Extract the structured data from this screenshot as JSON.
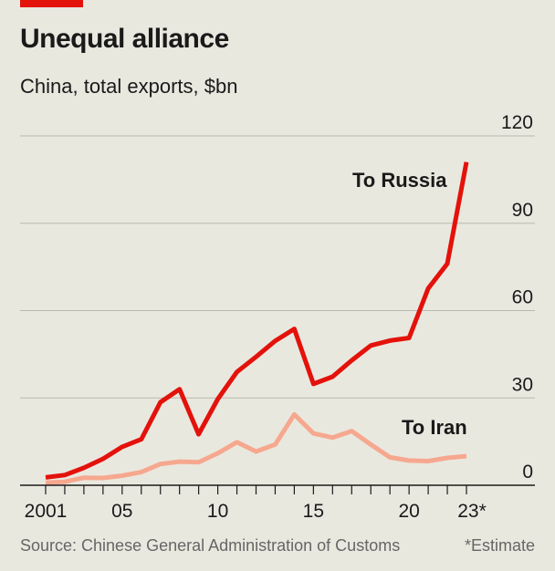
{
  "chart_data": {
    "type": "line",
    "title": "Unequal alliance",
    "subtitle": "China, total exports, $bn",
    "x": [
      2001,
      2002,
      2003,
      2004,
      2005,
      2006,
      2007,
      2008,
      2009,
      2010,
      2011,
      2012,
      2013,
      2014,
      2015,
      2016,
      2017,
      2018,
      2019,
      2020,
      2021,
      2022,
      2023
    ],
    "x_ticks": [
      {
        "value": 2001,
        "label": "2001"
      },
      {
        "value": 2005,
        "label": "05"
      },
      {
        "value": 2010,
        "label": "10"
      },
      {
        "value": 2015,
        "label": "15"
      },
      {
        "value": 2020,
        "label": "20"
      },
      {
        "value": 2023,
        "label": "23*"
      }
    ],
    "y_ticks": [
      0,
      30,
      60,
      90,
      120
    ],
    "ylim": [
      0,
      120
    ],
    "grid": true,
    "series": [
      {
        "name": "To Russia",
        "color": "#e3120b",
        "values": [
          2.7,
          3.5,
          6.0,
          9.1,
          13.2,
          15.8,
          28.5,
          33.0,
          17.5,
          29.6,
          38.9,
          44.1,
          49.6,
          53.7,
          34.8,
          37.3,
          42.9,
          48.0,
          49.7,
          50.6,
          67.6,
          76.1,
          111.0
        ]
      },
      {
        "name": "To Iran",
        "color": "#f6a88f",
        "values": [
          0.9,
          1.2,
          2.6,
          2.5,
          3.3,
          4.5,
          7.3,
          8.1,
          7.9,
          11.0,
          14.8,
          11.6,
          14.0,
          24.3,
          17.8,
          16.4,
          18.6,
          14.0,
          9.6,
          8.5,
          8.3,
          9.4,
          10.0
        ]
      }
    ],
    "source": "Source: Chinese General Administration of Customs",
    "note": "*Estimate"
  },
  "colors": {
    "accent": "#e3120b",
    "background": "#e9e8df",
    "grid": "#b9b8ae"
  }
}
